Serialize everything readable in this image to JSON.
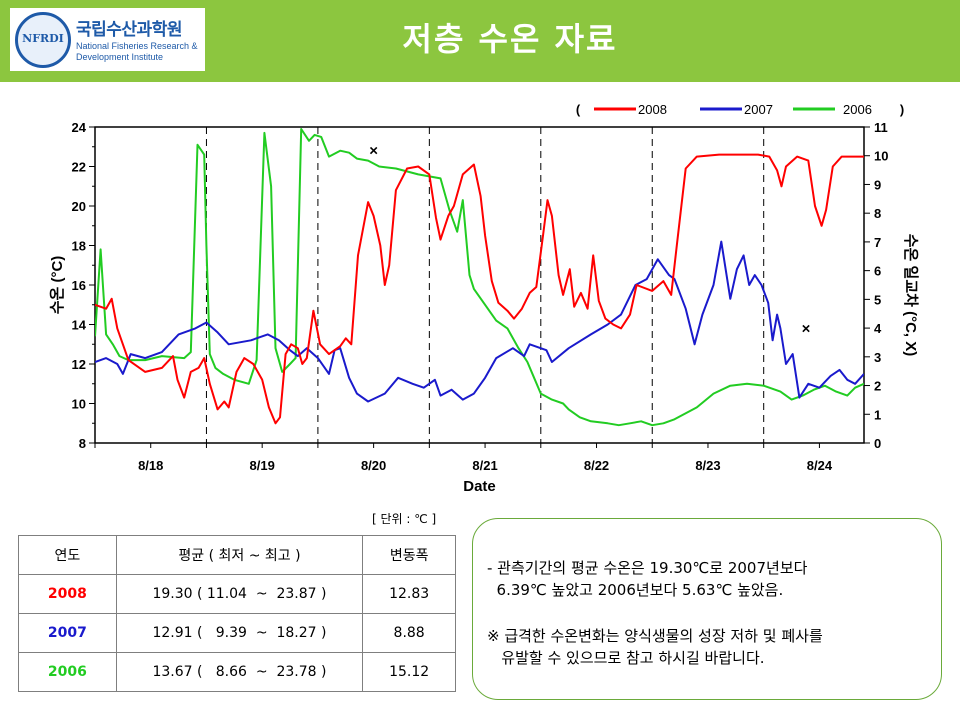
{
  "header": {
    "title": "저층 수온 자료",
    "logo": {
      "emblem_text": "NFRDI",
      "name_ko": "국립수산과학원",
      "name_en_line1": "National Fisheries Research &",
      "name_en_line2": "Development Institute"
    },
    "colors": {
      "bar": "#8cc63f",
      "logo_blue": "#1e5aa8"
    }
  },
  "chart_data": {
    "type": "line",
    "xlabel": "Date",
    "ylabel_left": "수온 (°C)",
    "ylabel_right": "수온 일교차 (°C, X)",
    "ylim_left": [
      8,
      24
    ],
    "ylim_right": [
      0,
      11
    ],
    "yticks_left": [
      8,
      10,
      12,
      14,
      16,
      18,
      20,
      22,
      24
    ],
    "yticks_right": [
      0,
      1,
      2,
      3,
      4,
      5,
      6,
      7,
      8,
      9,
      10,
      11
    ],
    "xlim_days": [
      0,
      6.9
    ],
    "day_labels": [
      "8/18",
      "8/19",
      "8/20",
      "8/21",
      "8/22",
      "8/23",
      "8/24"
    ],
    "legend": {
      "open": "(",
      "close": ")",
      "position": "top-right"
    },
    "series": [
      {
        "name": "2008",
        "color": "#ff0000",
        "points": [
          [
            0,
            15.0
          ],
          [
            0.1,
            14.8
          ],
          [
            0.15,
            15.3
          ],
          [
            0.2,
            13.8
          ],
          [
            0.3,
            12.2
          ],
          [
            0.45,
            11.6
          ],
          [
            0.6,
            11.8
          ],
          [
            0.7,
            12.4
          ],
          [
            0.74,
            11.2
          ],
          [
            0.8,
            10.3
          ],
          [
            0.86,
            11.6
          ],
          [
            0.93,
            11.8
          ],
          [
            0.98,
            12.3
          ],
          [
            1.03,
            11.0
          ],
          [
            1.1,
            9.7
          ],
          [
            1.16,
            10.1
          ],
          [
            1.2,
            9.8
          ],
          [
            1.27,
            11.6
          ],
          [
            1.34,
            12.3
          ],
          [
            1.42,
            12.0
          ],
          [
            1.5,
            11.2
          ],
          [
            1.56,
            9.8
          ],
          [
            1.62,
            9.0
          ],
          [
            1.66,
            9.3
          ],
          [
            1.71,
            12.5
          ],
          [
            1.76,
            13.0
          ],
          [
            1.82,
            12.8
          ],
          [
            1.86,
            12.0
          ],
          [
            1.9,
            12.3
          ],
          [
            1.96,
            14.7
          ],
          [
            2.02,
            13.0
          ],
          [
            2.1,
            12.5
          ],
          [
            2.2,
            12.9
          ],
          [
            2.25,
            13.3
          ],
          [
            2.3,
            13.0
          ],
          [
            2.36,
            17.5
          ],
          [
            2.45,
            20.2
          ],
          [
            2.5,
            19.5
          ],
          [
            2.56,
            18.0
          ],
          [
            2.6,
            16.0
          ],
          [
            2.64,
            17.0
          ],
          [
            2.7,
            20.8
          ],
          [
            2.8,
            21.9
          ],
          [
            2.9,
            22.0
          ],
          [
            3.0,
            21.6
          ],
          [
            3.06,
            19.4
          ],
          [
            3.1,
            18.3
          ],
          [
            3.17,
            19.5
          ],
          [
            3.22,
            20.0
          ],
          [
            3.3,
            21.6
          ],
          [
            3.4,
            22.1
          ],
          [
            3.46,
            20.5
          ],
          [
            3.5,
            18.5
          ],
          [
            3.56,
            16.2
          ],
          [
            3.62,
            15.1
          ],
          [
            3.7,
            14.7
          ],
          [
            3.76,
            14.3
          ],
          [
            3.83,
            14.8
          ],
          [
            3.9,
            15.6
          ],
          [
            3.96,
            15.9
          ],
          [
            4.02,
            18.5
          ],
          [
            4.06,
            20.3
          ],
          [
            4.1,
            19.5
          ],
          [
            4.16,
            16.5
          ],
          [
            4.2,
            15.5
          ],
          [
            4.26,
            16.8
          ],
          [
            4.3,
            14.9
          ],
          [
            4.36,
            15.6
          ],
          [
            4.42,
            14.8
          ],
          [
            4.47,
            17.5
          ],
          [
            4.52,
            15.2
          ],
          [
            4.58,
            14.3
          ],
          [
            4.65,
            14.0
          ],
          [
            4.72,
            13.8
          ],
          [
            4.8,
            14.5
          ],
          [
            4.86,
            16.0
          ],
          [
            5.0,
            15.7
          ],
          [
            5.1,
            16.2
          ],
          [
            5.17,
            15.5
          ],
          [
            5.22,
            18.0
          ],
          [
            5.3,
            21.9
          ],
          [
            5.4,
            22.5
          ],
          [
            5.6,
            22.6
          ],
          [
            5.8,
            22.6
          ],
          [
            5.95,
            22.6
          ],
          [
            6.05,
            22.5
          ],
          [
            6.12,
            21.8
          ],
          [
            6.16,
            21.0
          ],
          [
            6.2,
            22.0
          ],
          [
            6.3,
            22.5
          ],
          [
            6.4,
            22.3
          ],
          [
            6.46,
            20.0
          ],
          [
            6.52,
            19.0
          ],
          [
            6.56,
            19.8
          ],
          [
            6.62,
            22.0
          ],
          [
            6.7,
            22.5
          ],
          [
            6.9,
            22.5
          ]
        ]
      },
      {
        "name": "2007",
        "color": "#1a1acc",
        "points": [
          [
            0,
            12.1
          ],
          [
            0.1,
            12.3
          ],
          [
            0.2,
            12.0
          ],
          [
            0.25,
            11.5
          ],
          [
            0.32,
            12.5
          ],
          [
            0.45,
            12.3
          ],
          [
            0.6,
            12.6
          ],
          [
            0.75,
            13.5
          ],
          [
            0.9,
            13.8
          ],
          [
            1.0,
            14.1
          ],
          [
            1.1,
            13.6
          ],
          [
            1.2,
            13.0
          ],
          [
            1.4,
            13.2
          ],
          [
            1.55,
            13.5
          ],
          [
            1.65,
            13.2
          ],
          [
            1.75,
            12.7
          ],
          [
            1.82,
            12.4
          ],
          [
            1.9,
            12.8
          ],
          [
            2.0,
            12.3
          ],
          [
            2.1,
            11.5
          ],
          [
            2.15,
            12.7
          ],
          [
            2.2,
            12.8
          ],
          [
            2.28,
            11.3
          ],
          [
            2.35,
            10.5
          ],
          [
            2.45,
            10.1
          ],
          [
            2.6,
            10.5
          ],
          [
            2.72,
            11.3
          ],
          [
            2.85,
            11.0
          ],
          [
            2.95,
            10.8
          ],
          [
            3.05,
            11.2
          ],
          [
            3.1,
            10.4
          ],
          [
            3.2,
            10.7
          ],
          [
            3.3,
            10.2
          ],
          [
            3.4,
            10.5
          ],
          [
            3.5,
            11.3
          ],
          [
            3.6,
            12.3
          ],
          [
            3.75,
            12.8
          ],
          [
            3.85,
            12.4
          ],
          [
            3.9,
            13.0
          ],
          [
            4.05,
            12.7
          ],
          [
            4.1,
            12.1
          ],
          [
            4.25,
            12.8
          ],
          [
            4.45,
            13.5
          ],
          [
            4.6,
            14.0
          ],
          [
            4.72,
            14.5
          ],
          [
            4.85,
            16.0
          ],
          [
            4.95,
            16.3
          ],
          [
            5.05,
            17.3
          ],
          [
            5.15,
            16.5
          ],
          [
            5.2,
            16.3
          ],
          [
            5.3,
            14.8
          ],
          [
            5.38,
            13.0
          ],
          [
            5.45,
            14.5
          ],
          [
            5.55,
            16.0
          ],
          [
            5.62,
            18.2
          ],
          [
            5.7,
            15.3
          ],
          [
            5.76,
            16.8
          ],
          [
            5.82,
            17.5
          ],
          [
            5.87,
            16.0
          ],
          [
            5.92,
            16.5
          ],
          [
            5.98,
            16.0
          ],
          [
            6.04,
            15.1
          ],
          [
            6.08,
            13.2
          ],
          [
            6.12,
            14.5
          ],
          [
            6.15,
            13.8
          ],
          [
            6.2,
            12.0
          ],
          [
            6.26,
            12.5
          ],
          [
            6.32,
            10.3
          ],
          [
            6.4,
            11.0
          ],
          [
            6.5,
            10.8
          ],
          [
            6.6,
            11.4
          ],
          [
            6.68,
            11.7
          ],
          [
            6.75,
            11.2
          ],
          [
            6.82,
            11.0
          ],
          [
            6.9,
            11.5
          ]
        ]
      },
      {
        "name": "2006",
        "color": "#22cc22",
        "points": [
          [
            0,
            13.4
          ],
          [
            0.05,
            17.8
          ],
          [
            0.1,
            13.5
          ],
          [
            0.16,
            13.0
          ],
          [
            0.22,
            12.4
          ],
          [
            0.3,
            12.2
          ],
          [
            0.45,
            12.2
          ],
          [
            0.6,
            12.4
          ],
          [
            0.8,
            12.3
          ],
          [
            0.86,
            12.6
          ],
          [
            0.92,
            23.1
          ],
          [
            0.98,
            22.6
          ],
          [
            1.0,
            18.0
          ],
          [
            1.03,
            12.5
          ],
          [
            1.08,
            11.8
          ],
          [
            1.15,
            11.5
          ],
          [
            1.25,
            11.2
          ],
          [
            1.38,
            11.0
          ],
          [
            1.45,
            12.2
          ],
          [
            1.52,
            23.7
          ],
          [
            1.58,
            21.0
          ],
          [
            1.62,
            12.8
          ],
          [
            1.68,
            11.6
          ],
          [
            1.75,
            12.0
          ],
          [
            1.8,
            12.3
          ],
          [
            1.85,
            23.9
          ],
          [
            1.92,
            23.3
          ],
          [
            1.97,
            23.6
          ],
          [
            2.03,
            23.5
          ],
          [
            2.1,
            22.5
          ],
          [
            2.2,
            22.8
          ],
          [
            2.28,
            22.7
          ],
          [
            2.35,
            22.4
          ],
          [
            2.45,
            22.3
          ],
          [
            2.55,
            22.0
          ],
          [
            2.7,
            21.9
          ],
          [
            2.9,
            21.6
          ],
          [
            3.1,
            21.4
          ],
          [
            3.18,
            19.8
          ],
          [
            3.25,
            18.7
          ],
          [
            3.3,
            20.3
          ],
          [
            3.36,
            16.5
          ],
          [
            3.4,
            15.8
          ],
          [
            3.5,
            15.0
          ],
          [
            3.6,
            14.2
          ],
          [
            3.7,
            13.8
          ],
          [
            3.8,
            12.8
          ],
          [
            3.88,
            12.1
          ],
          [
            3.94,
            11.3
          ],
          [
            4.0,
            10.5
          ],
          [
            4.1,
            10.2
          ],
          [
            4.2,
            10.0
          ],
          [
            4.25,
            9.7
          ],
          [
            4.35,
            9.3
          ],
          [
            4.45,
            9.1
          ],
          [
            4.6,
            9.0
          ],
          [
            4.7,
            8.9
          ],
          [
            4.8,
            9.0
          ],
          [
            4.9,
            9.1
          ],
          [
            5.0,
            8.9
          ],
          [
            5.1,
            9.0
          ],
          [
            5.2,
            9.2
          ],
          [
            5.4,
            9.8
          ],
          [
            5.55,
            10.5
          ],
          [
            5.7,
            10.9
          ],
          [
            5.85,
            11.0
          ],
          [
            6.0,
            10.9
          ],
          [
            6.15,
            10.6
          ],
          [
            6.25,
            10.2
          ],
          [
            6.35,
            10.4
          ],
          [
            6.45,
            10.7
          ],
          [
            6.55,
            10.9
          ],
          [
            6.65,
            10.6
          ],
          [
            6.75,
            10.4
          ],
          [
            6.82,
            10.8
          ],
          [
            6.9,
            11.0
          ]
        ]
      }
    ],
    "markers": [
      {
        "symbol": "×",
        "x": 2.5,
        "y": 22.8
      },
      {
        "symbol": "×",
        "x": 6.38,
        "y": 13.8
      }
    ]
  },
  "unit_note": "[ 단위 : ℃ ]",
  "table": {
    "headers": [
      "연도",
      "평균 ( 최저 ~ 최고 )",
      "변동폭"
    ],
    "rows": [
      {
        "year": "2008",
        "avg": "19.30 ( 11.04  ~  23.87 )",
        "range": "12.83",
        "color": "#ff0000"
      },
      {
        "year": "2007",
        "avg": "12.91 (   9.39  ~  18.27 )",
        "range": "8.88",
        "color": "#1a1acc"
      },
      {
        "year": "2006",
        "avg": "13.67 (   8.66  ~  23.78 )",
        "range": "15.12",
        "color": "#22cc22"
      }
    ]
  },
  "notes": {
    "line1": "- 관측기간의 평균 수온은 19.30℃로 2007년보다",
    "line2": "  6.39℃ 높았고 2006년보다 5.63℃ 높았음.",
    "line3": "※ 급격한 수온변화는 양식생물의 성장 저하 및 폐사를",
    "line4": "   유발할 수 있으므로 참고 하시길 바랍니다."
  }
}
